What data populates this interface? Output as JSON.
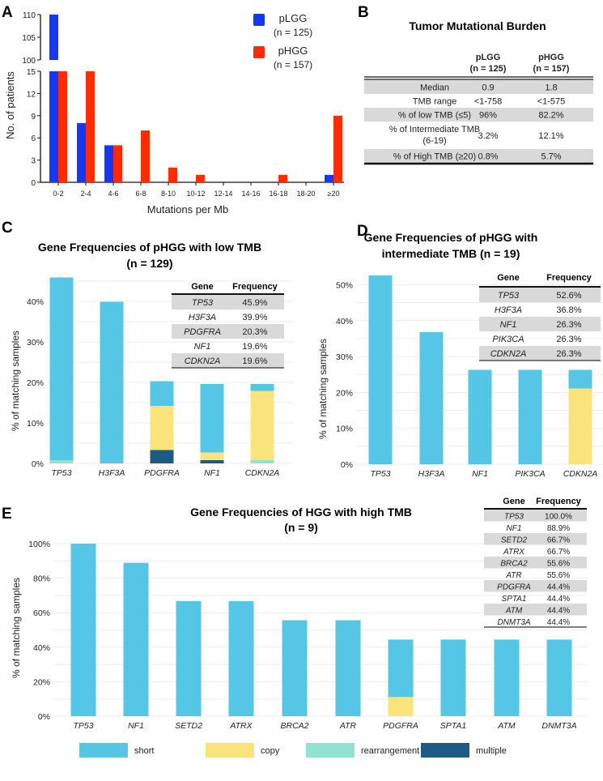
{
  "panel_labels": [
    "A",
    "B",
    "C",
    "D",
    "E"
  ],
  "colors": {
    "pLGG": "#1638f2",
    "pHGG": "#ff2b00",
    "short": "#56c6e7",
    "copy": "#fbe37c",
    "rearrangement": "#90e2d2",
    "multiple": "#1c5b82",
    "table_shade": "#d9d9d9"
  },
  "chart_data": [
    {
      "panel": "A",
      "type": "bar",
      "xlabel": "Mutations per Mb",
      "ylabel": "No. of patients",
      "categories": [
        "0-2",
        "2-4",
        "4-6",
        "6-8",
        "8-10",
        "10-12",
        "12-14",
        "14-16",
        "16-18",
        "18-20",
        "≥20"
      ],
      "series": [
        {
          "name": "pLGG",
          "n_label": "(n = 125)",
          "values": [
            110,
            8,
            5,
            0,
            0,
            0,
            0,
            0,
            0,
            0,
            1
          ]
        },
        {
          "name": "pHGG",
          "n_label": "(n = 157)",
          "values": [
            15,
            15,
            5,
            7,
            2,
            1,
            0,
            0,
            1,
            0,
            9
          ]
        }
      ],
      "yaxis_break": [
        15,
        100
      ],
      "yticks_lower": [
        "0",
        "3",
        "6",
        "9",
        "12",
        "15"
      ],
      "yticks_upper": [
        "100",
        "105",
        "110"
      ],
      "legend_position": "top-right"
    },
    {
      "panel": "B",
      "type": "table",
      "title": "Tumor Mutational Burden",
      "columns": [
        {
          "name": "pLGG",
          "n_label": "(n = 125)"
        },
        {
          "name": "pHGG",
          "n_label": "(n = 157)"
        }
      ],
      "rows": [
        {
          "label": [
            "Median"
          ],
          "values": [
            "0.9",
            "1.8"
          ],
          "shaded": true
        },
        {
          "label": [
            "TMB range"
          ],
          "values": [
            "<1-758",
            "<1-575"
          ],
          "shaded": false
        },
        {
          "label": [
            "% of low TMB (≤5)"
          ],
          "values": [
            "96%",
            "82.2%"
          ],
          "shaded": true
        },
        {
          "label": [
            "% of Intermediate TMB",
            "(6-19)"
          ],
          "values": [
            "3.2%",
            "12.1%"
          ],
          "shaded": false
        },
        {
          "label": [
            "% of High TMB (≥20)"
          ],
          "values": [
            "0.8%",
            "5.7%"
          ],
          "shaded": true
        }
      ]
    },
    {
      "panel": "C",
      "type": "bar",
      "stacked": true,
      "title": [
        "Gene Frequencies of pHGG with low TMB",
        "(n = 129)"
      ],
      "ylabel": "% of matching samples",
      "ylim": [
        0,
        46
      ],
      "yticks": [
        "0%",
        "10%",
        "20%",
        "30%",
        "40%"
      ],
      "categories": [
        "TP53",
        "H3F3A",
        "PDGFRA",
        "NF1",
        "CDKN2A"
      ],
      "series": [
        {
          "name": "multiple",
          "values": [
            0,
            0,
            3.3,
            0.8,
            0
          ]
        },
        {
          "name": "rearrangement",
          "values": [
            0.8,
            0,
            0,
            0,
            0.8
          ]
        },
        {
          "name": "copy",
          "values": [
            0,
            0,
            10.9,
            1.9,
            17.1
          ]
        },
        {
          "name": "short",
          "values": [
            45.1,
            39.9,
            6.1,
            16.9,
            1.7
          ]
        }
      ],
      "table": {
        "headers": [
          "Gene",
          "Frequency"
        ],
        "rows": [
          [
            "TP53",
            "45.9%"
          ],
          [
            "H3F3A",
            "39.9%"
          ],
          [
            "PDGFRA",
            "20.3%"
          ],
          [
            "NF1",
            "19.6%"
          ],
          [
            "CDKN2A",
            "19.6%"
          ]
        ]
      }
    },
    {
      "panel": "D",
      "type": "bar",
      "stacked": true,
      "title": [
        "Gene Frequencies of pHGG with",
        "intermediate TMB (n = 19)"
      ],
      "ylabel": "% of matching samples",
      "ylim": [
        0,
        53
      ],
      "yticks": [
        "0%",
        "10%",
        "20%",
        "30%",
        "40%",
        "50%"
      ],
      "categories": [
        "TP53",
        "H3F3A",
        "NF1",
        "PIK3CA",
        "CDKN2A"
      ],
      "series": [
        {
          "name": "multiple",
          "values": [
            0,
            0,
            0,
            0,
            0
          ]
        },
        {
          "name": "rearrangement",
          "values": [
            0,
            0,
            0,
            0,
            0
          ]
        },
        {
          "name": "copy",
          "values": [
            0,
            0,
            0,
            0,
            21.1
          ]
        },
        {
          "name": "short",
          "values": [
            52.6,
            36.8,
            26.3,
            26.3,
            5.2
          ]
        }
      ],
      "table": {
        "headers": [
          "Gene",
          "Frequency"
        ],
        "rows": [
          [
            "TP53",
            "52.6%"
          ],
          [
            "H3F3A",
            "36.8%"
          ],
          [
            "NF1",
            "26.3%"
          ],
          [
            "PIK3CA",
            "26.3%"
          ],
          [
            "CDKN2A",
            "26.3%"
          ]
        ]
      }
    },
    {
      "panel": "E",
      "type": "bar",
      "stacked": true,
      "title": [
        "Gene Frequencies of HGG with high TMB",
        "(n = 9)"
      ],
      "ylabel": "% of matching samples",
      "ylim": [
        0,
        100
      ],
      "yticks": [
        "0%",
        "20%",
        "40%",
        "60%",
        "80%",
        "100%"
      ],
      "categories": [
        "TP53",
        "NF1",
        "SETD2",
        "ATRX",
        "BRCA2",
        "ATR",
        "PDGFRA",
        "SPTA1",
        "ATM",
        "DNMT3A"
      ],
      "series": [
        {
          "name": "multiple",
          "values": [
            0,
            0,
            0,
            0,
            0,
            0,
            0,
            0,
            0,
            0
          ]
        },
        {
          "name": "rearrangement",
          "values": [
            0,
            0,
            0,
            0,
            0,
            0,
            0,
            0,
            0,
            0
          ]
        },
        {
          "name": "copy",
          "values": [
            0,
            0,
            0,
            0,
            0,
            0,
            11.1,
            0,
            0,
            0
          ]
        },
        {
          "name": "short",
          "values": [
            100,
            88.9,
            66.7,
            66.7,
            55.6,
            55.6,
            33.3,
            44.4,
            44.4,
            44.4
          ]
        }
      ],
      "table": {
        "headers": [
          "Gene",
          "Frequency"
        ],
        "rows": [
          [
            "TP53",
            "100.0%"
          ],
          [
            "NF1",
            "88.9%"
          ],
          [
            "SETD2",
            "66.7%"
          ],
          [
            "ATRX",
            "66.7%"
          ],
          [
            "BRCA2",
            "55.6%"
          ],
          [
            "ATR",
            "55.6%"
          ],
          [
            "PDGFRA",
            "44.4%"
          ],
          [
            "SPTA1",
            "44.4%"
          ],
          [
            "ATM",
            "44.4%"
          ],
          [
            "DNMT3A",
            "44.4%"
          ]
        ]
      }
    }
  ],
  "legend": [
    "short",
    "copy",
    "rearrangement",
    "multiple"
  ]
}
